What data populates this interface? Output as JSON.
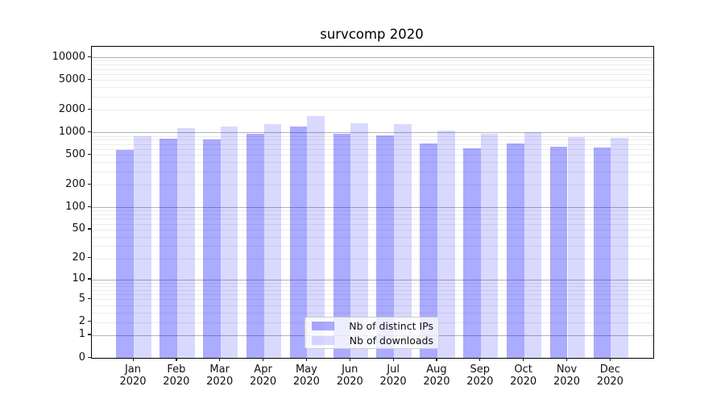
{
  "chart_data": {
    "type": "bar",
    "title": "survcomp 2020",
    "categories": [
      "Jan",
      "Feb",
      "Mar",
      "Apr",
      "May",
      "Jun",
      "Jul",
      "Aug",
      "Sep",
      "Oct",
      "Nov",
      "Dec"
    ],
    "year_label": "2020",
    "series": [
      {
        "name": "Nb of distinct IPs",
        "color": "rgba(0,0,255,0.33)",
        "values": [
          590,
          830,
          810,
          960,
          1185,
          960,
          910,
          720,
          615,
          705,
          650,
          630
        ]
      },
      {
        "name": "Nb of downloads",
        "color": "rgba(0,0,255,0.15)",
        "values": [
          890,
          1140,
          1200,
          1290,
          1635,
          1320,
          1280,
          1060,
          960,
          1020,
          865,
          850
        ]
      }
    ],
    "yaxis": {
      "scale": "log1p",
      "ticks": [
        10000,
        5000,
        2000,
        1000,
        500,
        200,
        100,
        50,
        20,
        10,
        5,
        2,
        1,
        0
      ],
      "ylim": [
        0,
        13800
      ],
      "major_grid_at": [
        1,
        10,
        100,
        1000,
        10000
      ]
    },
    "grid": true,
    "legend_position": "lower center",
    "colors": {
      "grid_major": "rgba(0,0,0,0.30)",
      "grid_minor": "rgba(0,0,0,0.08)",
      "axis": "#000000"
    }
  }
}
